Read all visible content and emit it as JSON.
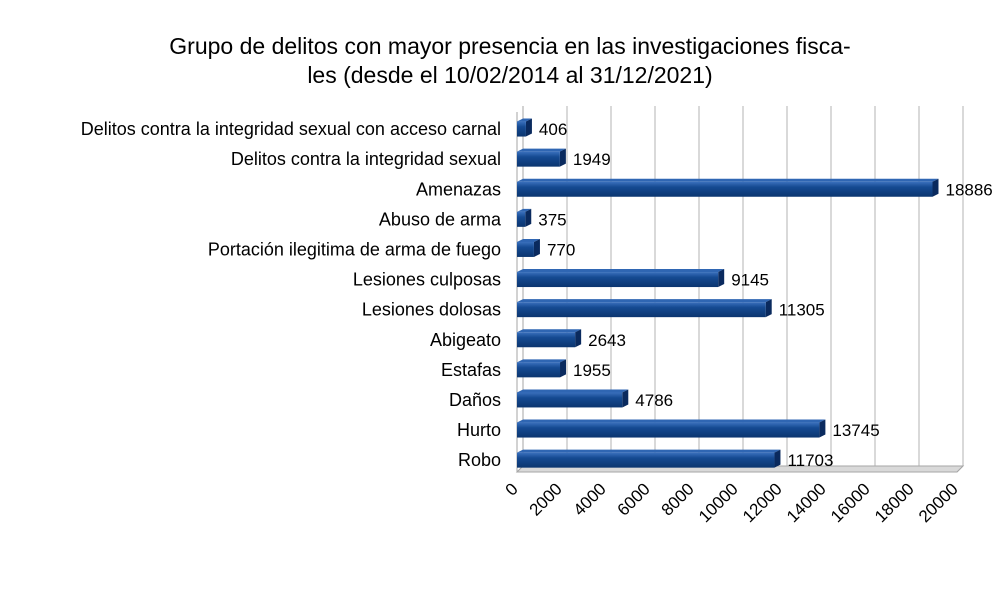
{
  "chart_data": {
    "type": "bar",
    "orientation": "horizontal",
    "title_lines": [
      "Grupo de delitos con mayor presencia en las investigaciones fisca-",
      "les (desde el 10/02/2014 al 31/12/2021)"
    ],
    "categories": [
      "Delitos contra la integridad sexual con acceso carnal",
      "Delitos contra la integridad sexual",
      "Amenazas",
      "Abuso de arma",
      "Portación ilegitima de arma de fuego",
      "Lesiones culposas",
      "Lesiones dolosas",
      "Abigeato",
      "Estafas",
      "Daños",
      "Hurto",
      "Robo"
    ],
    "values": [
      406,
      1949,
      18886,
      375,
      770,
      9145,
      11305,
      2643,
      1955,
      4786,
      13745,
      11703
    ],
    "value_labels": [
      "406",
      "1949",
      "18886",
      "375",
      "770",
      "9145",
      "11305",
      "2643",
      "1955",
      "4786",
      "13745",
      "11703"
    ],
    "x_ticks": [
      "0",
      "2000",
      "4000",
      "6000",
      "8000",
      "10000",
      "12000",
      "14000",
      "16000",
      "18000",
      "20000"
    ],
    "xlim": [
      0,
      20000
    ],
    "grid": true,
    "bar_color": "#0d3d80",
    "bar_highlight": "#2f66b3",
    "bar_shadow": "#0a2a5e"
  }
}
